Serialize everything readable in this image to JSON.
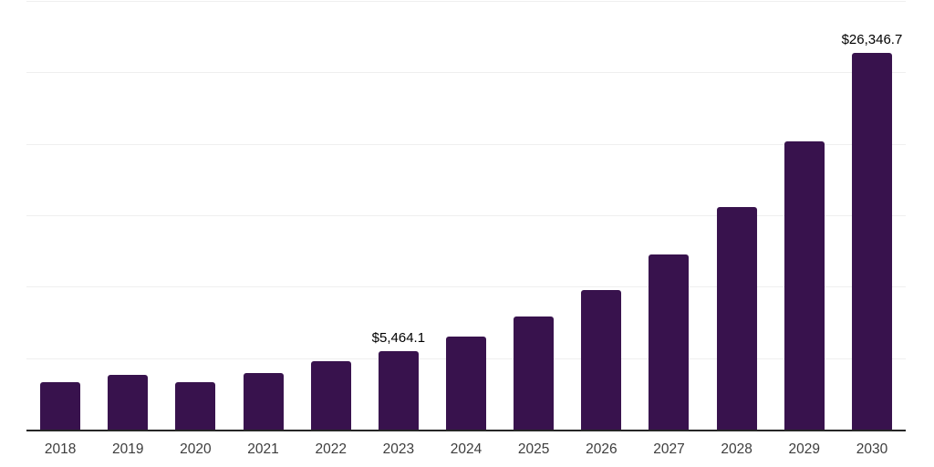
{
  "chart_data": {
    "type": "bar",
    "title": "",
    "xlabel": "",
    "ylabel": "",
    "categories": [
      "2018",
      "2019",
      "2020",
      "2021",
      "2022",
      "2023",
      "2024",
      "2025",
      "2026",
      "2027",
      "2028",
      "2029",
      "2030"
    ],
    "values": [
      3320,
      3810,
      3330,
      3980,
      4810,
      5464.1,
      6500,
      7920,
      9750,
      12240,
      15580,
      20160,
      26346.7
    ],
    "data_labels": [
      "",
      "",
      "",
      "",
      "",
      "$5,464.1",
      "",
      "",
      "",
      "",
      "",
      "",
      "$26,346.7"
    ],
    "ylim": [
      0,
      30000
    ],
    "gridline_step": 5000,
    "grid": "horizontal-only",
    "legend": "none",
    "y_axis_tick_labels": "none",
    "colors": {
      "bar": "#38124d",
      "gridline": "#efefef",
      "axis_line": "#262626",
      "tick_label": "#3d3d3d",
      "value_label": "#000000",
      "background": "#ffffff"
    }
  }
}
